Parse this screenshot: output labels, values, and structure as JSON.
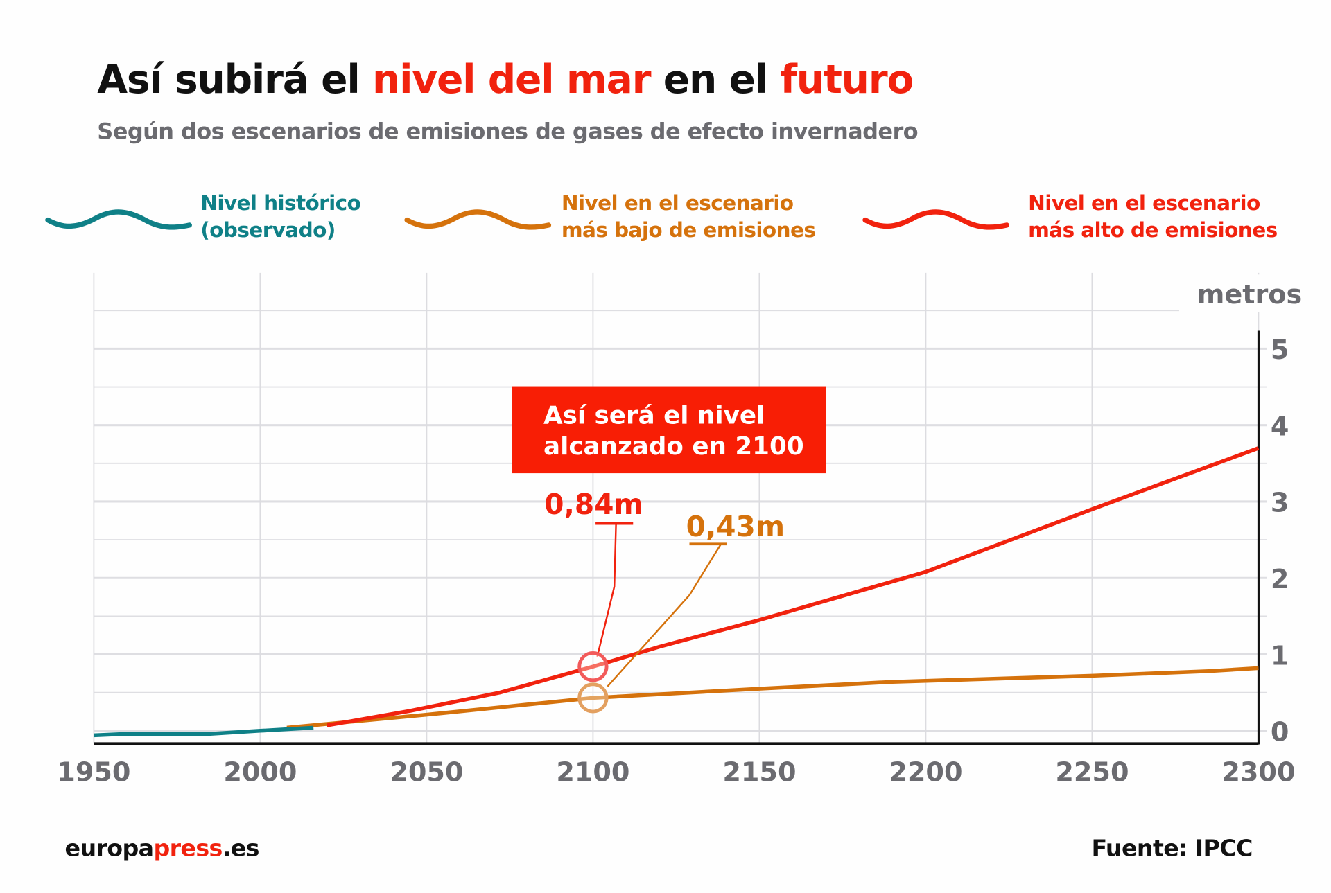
{
  "title": {
    "part1": "Así subirá el ",
    "part2": "nivel del mar",
    "part3": " en el ",
    "part4": "futuro"
  },
  "subtitle": "Según dos escenarios de emisiones de gases de efecto invernadero",
  "colors": {
    "historic": "#0f8087",
    "low": "#d5720c",
    "high": "#f1220e",
    "accent": "#f1220e"
  },
  "legend": [
    {
      "line1": "Nivel histórico",
      "line2": "(observado)",
      "icon": "wave-teal-icon"
    },
    {
      "line1": "Nivel en el escenario",
      "line2": "más bajo de emisiones",
      "icon": "wave-orange-icon"
    },
    {
      "line1": "Nivel en el escenario",
      "line2": "más alto de emisiones",
      "icon": "wave-red-icon"
    }
  ],
  "chart_data": {
    "type": "line",
    "title": "Así subirá el nivel del mar en el futuro",
    "ylabel": "metros",
    "xlim": [
      1950,
      2300
    ],
    "ylim": [
      0,
      5
    ],
    "x_ticks": [
      "1950",
      "2000",
      "2050",
      "2100",
      "2150",
      "2200",
      "2250",
      "2300"
    ],
    "y_ticks": [
      "0",
      "1",
      "2",
      "3",
      "4",
      "5"
    ],
    "grid": true,
    "series": [
      {
        "name": "Nivel histórico (observado)",
        "color": "#0f8087",
        "x": [
          1950,
          1960,
          1985,
          2000,
          2016
        ],
        "y": [
          -0.06,
          -0.04,
          -0.04,
          0.0,
          0.04
        ]
      },
      {
        "name": "Nivel en el escenario más bajo de emisiones",
        "color": "#d5720c",
        "x": [
          2008,
          2050,
          2100,
          2150,
          2190,
          2250,
          2285,
          2300
        ],
        "y": [
          0.04,
          0.21,
          0.43,
          0.55,
          0.64,
          0.72,
          0.78,
          0.82
        ]
      },
      {
        "name": "Nivel en el escenario más alto de emisiones",
        "color": "#f1220e",
        "x": [
          2020,
          2045,
          2072,
          2100,
          2120,
          2150,
          2200,
          2250,
          2300
        ],
        "y": [
          0.07,
          0.26,
          0.5,
          0.84,
          1.1,
          1.45,
          2.08,
          2.9,
          3.7
        ]
      }
    ],
    "annotations": {
      "box": {
        "line1": "Así será el nivel",
        "line2": "alcanzado en 2100"
      },
      "high_2100": {
        "label": "0,84m",
        "x": 2100,
        "y": 0.84
      },
      "low_2100": {
        "label": "0,43m",
        "x": 2100,
        "y": 0.43
      }
    }
  },
  "footer": {
    "brand1": "europa",
    "brand2": "press",
    "brand3": ".es",
    "source": "Fuente: IPCC"
  }
}
